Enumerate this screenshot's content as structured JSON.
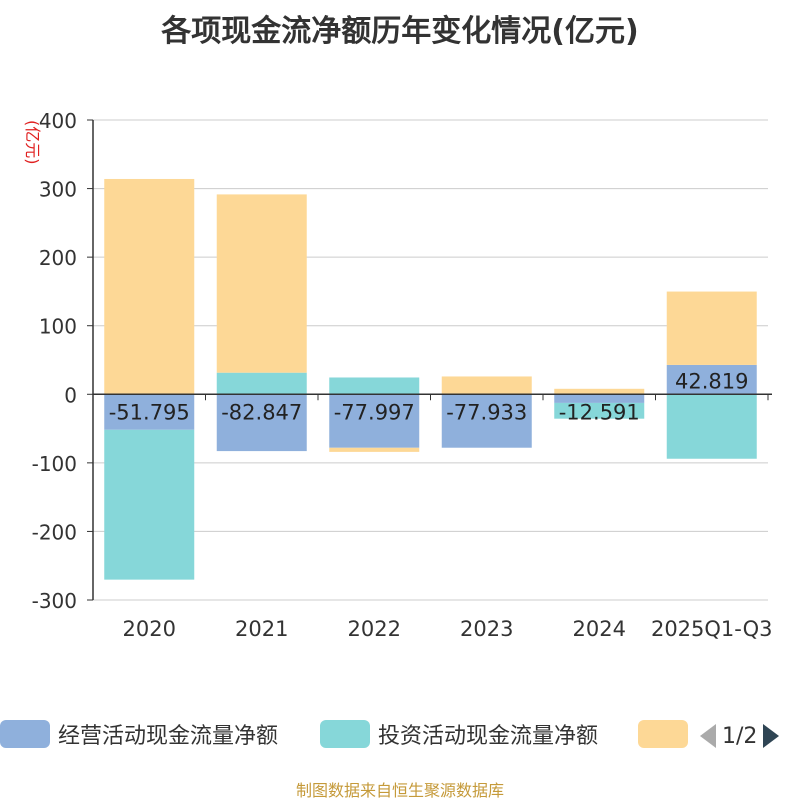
{
  "chart_data": {
    "type": "bar",
    "stacked": true,
    "title": "各项现金流净额历年变化情况(亿元)",
    "ylabel": "(亿元)",
    "xlabel": "",
    "ylim": [
      -300,
      400
    ],
    "yticks": [
      400,
      300,
      200,
      100,
      0,
      -100,
      -200,
      -300
    ],
    "categories": [
      "2020",
      "2021",
      "2022",
      "2023",
      "2024",
      "2025Q1-Q3"
    ],
    "series": [
      {
        "name": "经营活动现金流量净额",
        "color": "#8fb0dc",
        "values": [
          -51.795,
          -82.847,
          -77.997,
          -77.933,
          -12.591,
          42.819
        ],
        "labels": [
          "-51.795",
          "-82.847",
          "-77.997",
          "-77.933",
          "-12.591",
          "42.819"
        ]
      },
      {
        "name": "投资活动现金流量净额",
        "color": "#86d7d9",
        "values": [
          -218.5,
          31.5,
          24.5,
          0.0,
          -23.0,
          -94.0
        ]
      },
      {
        "name": "",
        "color": "#fdd896",
        "values": [
          314.0,
          260.0,
          -6.0,
          26.0,
          8.0,
          107.0
        ]
      }
    ],
    "legend_position": "bottom"
  },
  "legend": {
    "items": [
      {
        "label": "经营活动现金流量净额",
        "color": "#8fb0dc"
      },
      {
        "label": "投资活动现金流量净额",
        "color": "#86d7d9"
      },
      {
        "label": "",
        "color": "#fdd896"
      }
    ],
    "page": "1/2"
  },
  "source": "制图数据来自恒生聚源数据库"
}
